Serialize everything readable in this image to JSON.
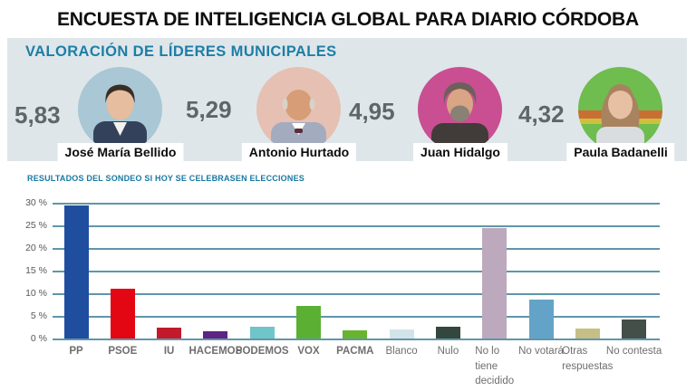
{
  "title": "ENCUESTA DE INTELIGENCIA GLOBAL PARA DIARIO CÓRDOBA",
  "leaders_section": {
    "heading": "VALORACIÓN DE LÍDERES MUNICIPALES",
    "leaders": [
      {
        "name": "José María Bellido",
        "score": "5,83",
        "avatar": {
          "bg": "#a9c7d4",
          "skin": "#e6bd9e",
          "hair": "#3a2d26",
          "shirt": "#33415a"
        }
      },
      {
        "name": "Antonio Hurtado",
        "score": "5,29",
        "avatar": {
          "bg": "#e6c0b2",
          "skin": "#d79d76",
          "hair": "#d8d2c8",
          "shirt": "#a3abbf"
        }
      },
      {
        "name": "Juan Hidalgo",
        "score": "4,95",
        "avatar": {
          "bg": "#c94f92",
          "skin": "#d9a584",
          "hair": "#6b6159",
          "shirt": "#413c3a"
        }
      },
      {
        "name": "Paula Badanelli",
        "score": "4,32",
        "avatar": {
          "bg": "#6fbc4f",
          "skin": "#e7bfa2",
          "hair": "#a98260",
          "shirt": "#d9dde0"
        }
      }
    ]
  },
  "chart_data": {
    "type": "bar",
    "title": "RESULTADOS DEL SONDEO SI HOY SE CELEBRASEN ELECCIONES",
    "categories": [
      "PP",
      "PSOE",
      "IU",
      "HACEMOS",
      "PODEMOS",
      "VOX",
      "PACMA",
      "Blanco",
      "Nulo",
      "No lo\ntiene\ndecidido",
      "No votará",
      "Otras\nrespuestas",
      "No contesta"
    ],
    "values": [
      29.5,
      11,
      2.4,
      1.6,
      2.6,
      7.3,
      1.9,
      2.1,
      2.6,
      24.4,
      8.7,
      2.2,
      4.3
    ],
    "colors": [
      "#1f4e9e",
      "#e30613",
      "#c21a2c",
      "#5e2383",
      "#6fc5c9",
      "#5bb033",
      "#68b42e",
      "#d3e4e9",
      "#33473e",
      "#bca9bd",
      "#64a3c8",
      "#c6bf85",
      "#454f4a"
    ],
    "xlabel": "",
    "ylabel": "",
    "ylim": [
      0,
      30
    ],
    "grid": true,
    "gridline_color": "#5f96ab",
    "yticks": [
      {
        "value": 30,
        "label": "30 %"
      },
      {
        "value": 25,
        "label": "25 %"
      },
      {
        "value": 20,
        "label": "20 %"
      },
      {
        "value": 15,
        "label": "15 %"
      },
      {
        "value": 10,
        "label": "10 %"
      },
      {
        "value": 5,
        "label": "5 %"
      },
      {
        "value": 0,
        "label": "0 %"
      }
    ]
  }
}
